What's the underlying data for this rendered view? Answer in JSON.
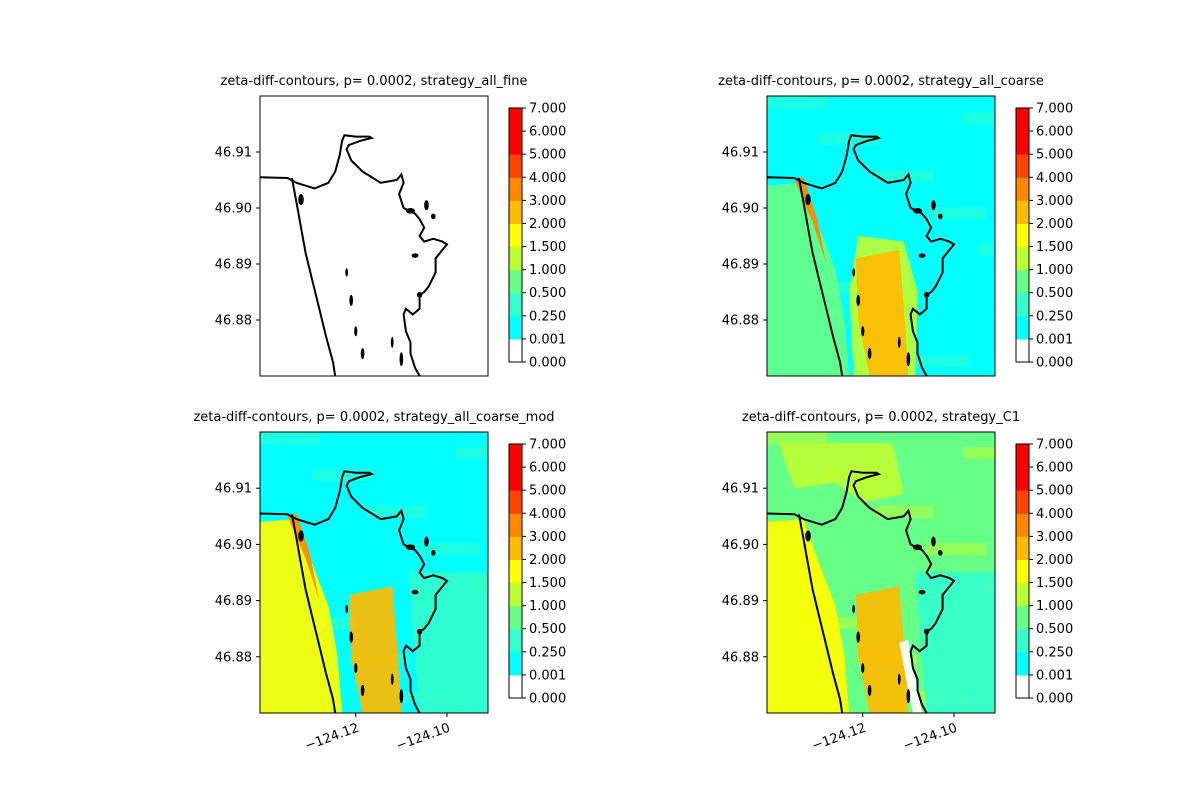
{
  "chart_data": {
    "type": "heatmap",
    "colors": {
      "coastline": "#000000",
      "levels": [
        "#ffffff",
        "#00ffff",
        "#33ffcc",
        "#66ff88",
        "#bbff33",
        "#ffff00",
        "#ffbb00",
        "#ff8800",
        "#ff4400",
        "#ff0000"
      ]
    },
    "levels": [
      "0.000",
      "0.001",
      "0.250",
      "0.500",
      "1.000",
      "1.500",
      "2.000",
      "3.000",
      "4.000",
      "5.000",
      "6.000",
      "7.000"
    ],
    "ylim": [
      46.87,
      46.92
    ],
    "xlim": [
      -124.141,
      -124.091
    ],
    "yticks": [
      "46.88",
      "46.89",
      "46.90",
      "46.91"
    ],
    "ytick_values": [
      46.88,
      46.89,
      46.9,
      46.91
    ],
    "xticks": [
      "−124.12",
      "−124.10"
    ],
    "xtick_values": [
      -124.12,
      -124.1
    ],
    "panels": [
      {
        "title": "zeta-diff-contours, p= 0.0002, strategy_all_fine",
        "background_level": 0,
        "patches": [],
        "show_xticks": false
      },
      {
        "title": "zeta-diff-contours, p= 0.0002, strategy_all_coarse",
        "background_level": 1,
        "patches": [
          {
            "region": "southwest",
            "level": 3
          },
          {
            "region": "south-central",
            "level": 4
          },
          {
            "region": "channel",
            "level": 7
          },
          {
            "region": "shoal",
            "level": 6
          }
        ],
        "show_xticks": false
      },
      {
        "title": "zeta-diff-contours, p= 0.0002, strategy_all_coarse_mod",
        "background_level": 1,
        "patches": [
          {
            "region": "southwest",
            "level": 5
          },
          {
            "region": "shoal",
            "level": 6
          },
          {
            "region": "channel",
            "level": 7
          },
          {
            "region": "east",
            "level": 2
          }
        ],
        "show_xticks": true
      },
      {
        "title": "zeta-diff-contours, p= 0.0002, strategy_C1",
        "background_level": 3,
        "patches": [
          {
            "region": "southwest",
            "level": 5
          },
          {
            "region": "north",
            "level": 4
          },
          {
            "region": "shoal",
            "level": 6
          },
          {
            "region": "east",
            "level": 2
          },
          {
            "region": "dry-strip",
            "level": 0
          }
        ],
        "show_xticks": true
      }
    ]
  }
}
